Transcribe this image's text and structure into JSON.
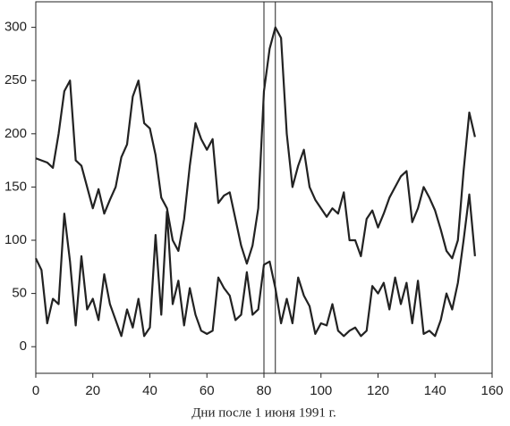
{
  "chart_data": {
    "type": "line",
    "xlabel": "Дни после 1 июня 1991 г.",
    "x": [
      0,
      2,
      4,
      6,
      8,
      10,
      12,
      14,
      16,
      18,
      20,
      22,
      24,
      26,
      28,
      30,
      32,
      34,
      36,
      38,
      40,
      42,
      44,
      46,
      48,
      50,
      52,
      54,
      56,
      58,
      60,
      62,
      64,
      66,
      68,
      70,
      72,
      74,
      76,
      78,
      80,
      82,
      84,
      86,
      88,
      90,
      92,
      94,
      96,
      98,
      100,
      102,
      104,
      106,
      108,
      110,
      112,
      114,
      116,
      118,
      120,
      122,
      124,
      126,
      128,
      130,
      132,
      134,
      136,
      138,
      140,
      142,
      144,
      146,
      148,
      150,
      152,
      154
    ],
    "series": [
      {
        "color": "#222222",
        "values": [
          177,
          175,
          173,
          168,
          200,
          240,
          250,
          175,
          170,
          150,
          130,
          148,
          125,
          138,
          150,
          178,
          190,
          235,
          250,
          210,
          205,
          180,
          140,
          130,
          100,
          90,
          120,
          170,
          210,
          195,
          185,
          195,
          135,
          142,
          145,
          120,
          95,
          78,
          95,
          130,
          240,
          280,
          300,
          290,
          200,
          150,
          170,
          185,
          150,
          138,
          130,
          122,
          130,
          125,
          145,
          100,
          100,
          85,
          120,
          128,
          112,
          125,
          140,
          150,
          160,
          165,
          117,
          130,
          150,
          140,
          128,
          110,
          90,
          83,
          100,
          165,
          220,
          197
        ]
      },
      {
        "color": "#222222",
        "values": [
          83,
          72,
          22,
          45,
          40,
          125,
          80,
          20,
          85,
          35,
          45,
          25,
          68,
          40,
          25,
          10,
          35,
          18,
          45,
          10,
          18,
          105,
          30,
          127,
          40,
          62,
          20,
          55,
          30,
          15,
          12,
          15,
          65,
          55,
          48,
          25,
          30,
          70,
          30,
          35,
          77,
          80,
          55,
          22,
          45,
          22,
          65,
          48,
          38,
          12,
          22,
          20,
          40,
          15,
          10,
          15,
          18,
          10,
          15,
          57,
          50,
          60,
          35,
          65,
          40,
          60,
          22,
          62,
          12,
          15,
          10,
          25,
          50,
          35,
          60,
          100,
          143,
          85
        ]
      }
    ],
    "reference_lines": [
      80,
      84
    ],
    "xlim": [
      0,
      160
    ],
    "ylim": [
      -25,
      324
    ],
    "xticks": [
      0,
      20,
      40,
      60,
      80,
      100,
      120,
      140,
      160
    ],
    "yticks": [
      0,
      50,
      100,
      150,
      200,
      250,
      300
    ]
  }
}
